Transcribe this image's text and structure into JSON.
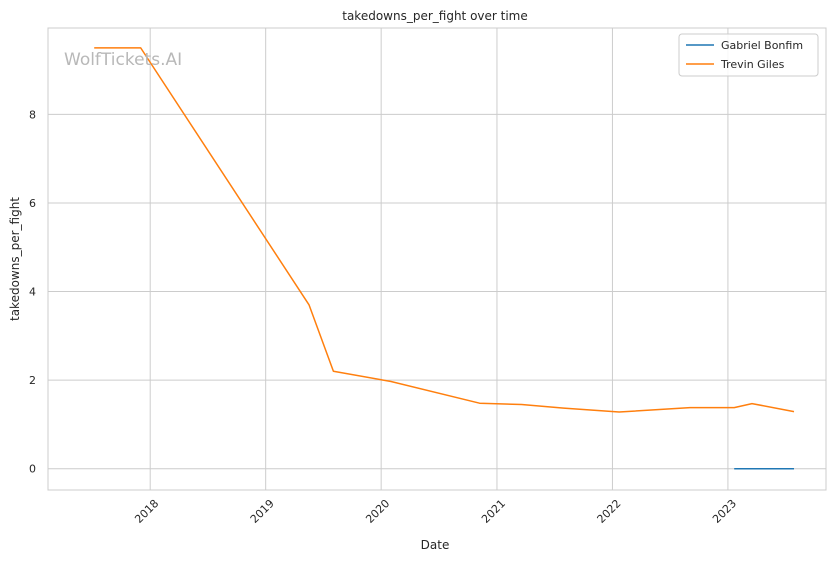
{
  "chart_data": {
    "type": "line",
    "title": "takedowns_per_fight over time",
    "xlabel": "Date",
    "ylabel": "takedowns_per_fight",
    "x_type": "date",
    "xlim": [
      "2017-02-12",
      "2023-11-07"
    ],
    "ylim": [
      -0.48,
      9.95
    ],
    "x_ticks": [
      "2018-01-01",
      "2019-01-01",
      "2020-01-01",
      "2021-01-01",
      "2022-01-01",
      "2023-01-01"
    ],
    "x_tick_labels": [
      "2018",
      "2019",
      "2020",
      "2021",
      "2022",
      "2023"
    ],
    "y_ticks": [
      0,
      2,
      4,
      6,
      8
    ],
    "y_tick_labels": [
      "0",
      "2",
      "4",
      "6",
      "8"
    ],
    "grid": true,
    "legend_position": "top-right",
    "watermark": "WolfTickets.AI",
    "series": [
      {
        "name": "Gabriel Bonfim",
        "color": "#1f77b4",
        "x": [
          "2023-01-21",
          "2023-07-29"
        ],
        "y": [
          0.0,
          0.0
        ]
      },
      {
        "name": "Trevin Giles",
        "color": "#ff7f0e",
        "x": [
          "2017-07-08",
          "2017-12-02",
          "2019-05-18",
          "2019-08-03",
          "2020-02-01",
          "2020-11-07",
          "2021-03-20",
          "2021-07-31",
          "2022-01-22",
          "2022-09-03",
          "2023-01-21",
          "2023-03-18",
          "2023-07-29"
        ],
        "y": [
          9.5,
          9.5,
          3.7,
          2.2,
          1.97,
          1.48,
          1.45,
          1.37,
          1.28,
          1.38,
          1.38,
          1.47,
          1.29
        ]
      }
    ]
  }
}
